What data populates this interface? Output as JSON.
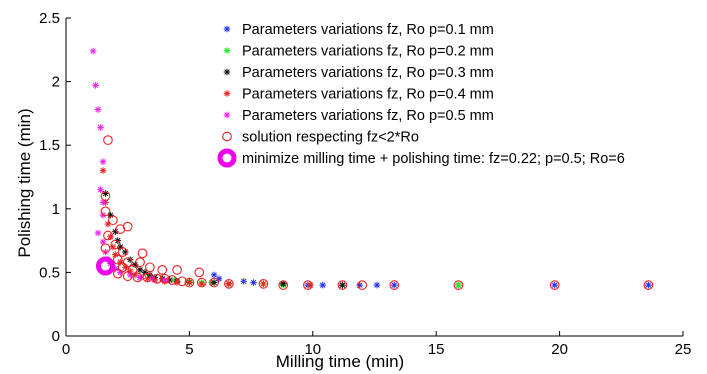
{
  "chart_data": {
    "type": "scatter",
    "xlabel": "Milling time (min)",
    "ylabel": "Polishing time (min)",
    "xlim": [
      0,
      25
    ],
    "ylim": [
      0,
      2.5
    ],
    "xticks": [
      "0",
      "5",
      "10",
      "15",
      "20",
      "25"
    ],
    "yticks": [
      "0",
      "0.5",
      "1",
      "1.5",
      "2",
      "2.5"
    ],
    "grid": false,
    "legend_position": "top-right",
    "colors": {
      "p01": "#2233ee",
      "p02": "#22ee22",
      "p03": "#111111",
      "p04": "#ee2222",
      "p05": "#ee22ee",
      "solution": "#ee2222",
      "optimum": "#ee00ee"
    },
    "series": [
      {
        "name": "Parameters variations fz, Ro p=0.1 mm",
        "marker": "asterisk",
        "color": "#2233ee",
        "points": [
          [
            6.0,
            0.48
          ],
          [
            6.2,
            0.45
          ],
          [
            7.2,
            0.43
          ],
          [
            7.6,
            0.42
          ],
          [
            8.8,
            0.41
          ],
          [
            9.8,
            0.4
          ],
          [
            10.4,
            0.4
          ],
          [
            11.2,
            0.4
          ],
          [
            11.9,
            0.4
          ],
          [
            12.6,
            0.4
          ],
          [
            13.3,
            0.4
          ],
          [
            15.9,
            0.4
          ],
          [
            19.8,
            0.4
          ],
          [
            23.6,
            0.4
          ]
        ]
      },
      {
        "name": "Parameters variations fz, Ro p=0.2 mm",
        "marker": "asterisk",
        "color": "#22ee22",
        "points": [
          [
            3.4,
            0.47
          ],
          [
            3.9,
            0.45
          ],
          [
            4.4,
            0.44
          ],
          [
            5.0,
            0.43
          ],
          [
            5.5,
            0.42
          ],
          [
            5.9,
            0.42
          ],
          [
            6.6,
            0.41
          ],
          [
            8.0,
            0.41
          ],
          [
            8.8,
            0.4
          ],
          [
            9.9,
            0.4
          ],
          [
            11.2,
            0.4
          ],
          [
            15.9,
            0.4
          ]
        ]
      },
      {
        "name": "Parameters variations fz, Ro p=0.3 mm",
        "marker": "asterisk",
        "color": "#111111",
        "points": [
          [
            1.6,
            1.12
          ],
          [
            1.8,
            0.95
          ],
          [
            2.0,
            0.82
          ],
          [
            2.1,
            0.75
          ],
          [
            2.2,
            0.7
          ],
          [
            2.4,
            0.66
          ],
          [
            2.6,
            0.6
          ],
          [
            2.8,
            0.56
          ],
          [
            3.0,
            0.52
          ],
          [
            3.2,
            0.5
          ],
          [
            3.4,
            0.48
          ],
          [
            3.6,
            0.46
          ],
          [
            3.9,
            0.45
          ],
          [
            4.2,
            0.44
          ],
          [
            4.5,
            0.43
          ],
          [
            5.0,
            0.42
          ],
          [
            6.0,
            0.42
          ],
          [
            6.6,
            0.41
          ],
          [
            8.8,
            0.41
          ],
          [
            11.2,
            0.4
          ]
        ]
      },
      {
        "name": "Parameters variations fz, Ro p=0.4 mm",
        "marker": "asterisk",
        "color": "#ee2222",
        "points": [
          [
            1.5,
            1.3
          ],
          [
            1.6,
            1.05
          ],
          [
            1.7,
            0.88
          ],
          [
            1.8,
            0.78
          ],
          [
            1.9,
            0.7
          ],
          [
            2.0,
            0.64
          ],
          [
            2.2,
            0.58
          ],
          [
            2.4,
            0.54
          ],
          [
            2.6,
            0.51
          ],
          [
            2.8,
            0.48
          ],
          [
            3.0,
            0.46
          ],
          [
            3.3,
            0.45
          ],
          [
            3.6,
            0.44
          ],
          [
            4.0,
            0.43
          ],
          [
            4.5,
            0.42
          ],
          [
            5.0,
            0.42
          ],
          [
            5.5,
            0.41
          ],
          [
            6.6,
            0.41
          ],
          [
            8.0,
            0.41
          ],
          [
            9.9,
            0.4
          ]
        ]
      },
      {
        "name": "Parameters variations fz, Ro p=0.5 mm",
        "marker": "asterisk",
        "color": "#ee22ee",
        "points": [
          [
            1.1,
            2.24
          ],
          [
            1.2,
            1.97
          ],
          [
            1.3,
            1.78
          ],
          [
            1.4,
            1.64
          ],
          [
            1.5,
            1.37
          ],
          [
            1.4,
            1.15
          ],
          [
            1.5,
            1.05
          ],
          [
            1.5,
            0.95
          ],
          [
            1.3,
            0.81
          ],
          [
            1.5,
            0.74
          ],
          [
            1.6,
            0.66
          ],
          [
            1.7,
            0.6
          ],
          [
            1.8,
            0.57
          ],
          [
            2.0,
            0.53
          ],
          [
            2.2,
            0.5
          ],
          [
            2.6,
            0.48
          ],
          [
            3.0,
            0.46
          ],
          [
            3.5,
            0.45
          ],
          [
            4.0,
            0.44
          ]
        ]
      },
      {
        "name": "solution respecting fz<2*Ro",
        "marker": "circle",
        "color": "#ee2222",
        "points": [
          [
            1.7,
            1.54
          ],
          [
            1.6,
            1.1
          ],
          [
            1.6,
            0.98
          ],
          [
            1.9,
            0.91
          ],
          [
            2.2,
            0.84
          ],
          [
            2.5,
            0.86
          ],
          [
            1.7,
            0.79
          ],
          [
            2.0,
            0.72
          ],
          [
            1.6,
            0.69
          ],
          [
            2.3,
            0.66
          ],
          [
            2.1,
            0.6
          ],
          [
            2.5,
            0.58
          ],
          [
            3.1,
            0.65
          ],
          [
            3.0,
            0.58
          ],
          [
            2.3,
            0.54
          ],
          [
            2.7,
            0.52
          ],
          [
            3.4,
            0.54
          ],
          [
            3.9,
            0.52
          ],
          [
            4.5,
            0.52
          ],
          [
            5.4,
            0.5
          ],
          [
            2.1,
            0.49
          ],
          [
            2.5,
            0.47
          ],
          [
            2.9,
            0.46
          ],
          [
            3.3,
            0.46
          ],
          [
            3.7,
            0.45
          ],
          [
            4.0,
            0.45
          ],
          [
            4.3,
            0.44
          ],
          [
            4.7,
            0.43
          ],
          [
            5.0,
            0.42
          ],
          [
            5.5,
            0.42
          ],
          [
            6.0,
            0.42
          ],
          [
            6.6,
            0.41
          ],
          [
            8.0,
            0.41
          ],
          [
            8.8,
            0.4
          ],
          [
            9.8,
            0.4
          ],
          [
            11.2,
            0.4
          ],
          [
            12.0,
            0.4
          ],
          [
            13.3,
            0.4
          ],
          [
            15.9,
            0.4
          ],
          [
            19.8,
            0.4
          ],
          [
            23.6,
            0.4
          ]
        ]
      },
      {
        "name": "minimize milling time + polishing time: fz=0.22; p=0.5; Ro=6",
        "marker": "big-circle",
        "color": "#ee00ee",
        "points": [
          [
            1.6,
            0.55
          ]
        ]
      }
    ]
  }
}
